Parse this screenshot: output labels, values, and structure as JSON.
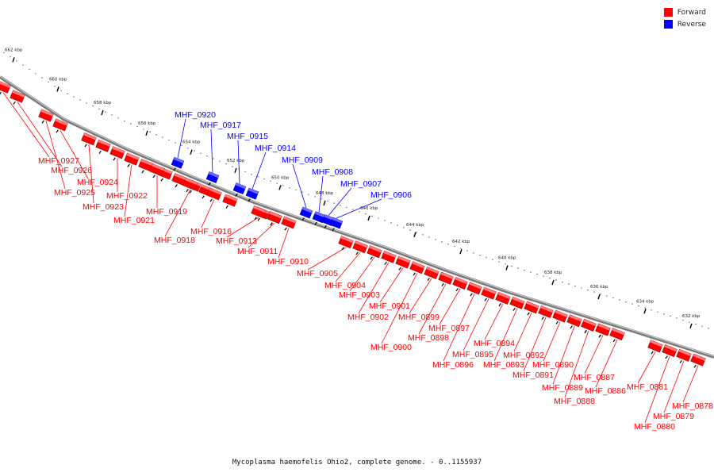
{
  "legend": {
    "forward": {
      "label": "Forward",
      "color": "#ff0000"
    },
    "reverse": {
      "label": "Reverse",
      "color": "#0000ff"
    }
  },
  "caption": "Mycoplasma haemofelis Ohio2, complete genome. - 0..1155937",
  "ruler": {
    "ticks": [
      "662 kbp",
      "660 kbp",
      "658 kbp",
      "656 kbp",
      "654 kbp",
      "652 kbp",
      "650 kbp",
      "648 kbp",
      "646 kbp",
      "644 kbp",
      "642 kbp",
      "640 kbp",
      "638 kbp",
      "636 kbp",
      "634 kbp",
      "632 kbp"
    ]
  },
  "genes": [
    {
      "name": "MHF_0927",
      "strand": "forward"
    },
    {
      "name": "MHF_0926",
      "strand": "forward"
    },
    {
      "name": "MHF_0925",
      "strand": "forward"
    },
    {
      "name": "MHF_0924",
      "strand": "forward"
    },
    {
      "name": "MHF_0923",
      "strand": "forward"
    },
    {
      "name": "MHF_0922",
      "strand": "forward"
    },
    {
      "name": "MHF_0921",
      "strand": "forward"
    },
    {
      "name": "MHF_0920",
      "strand": "reverse"
    },
    {
      "name": "MHF_0919",
      "strand": "forward"
    },
    {
      "name": "MHF_0918",
      "strand": "forward"
    },
    {
      "name": "MHF_0917",
      "strand": "reverse"
    },
    {
      "name": "MHF_0916",
      "strand": "forward"
    },
    {
      "name": "MHF_0915",
      "strand": "reverse"
    },
    {
      "name": "MHF_0914",
      "strand": "reverse"
    },
    {
      "name": "MHF_0913",
      "strand": "forward"
    },
    {
      "name": "MHF_0911",
      "strand": "forward"
    },
    {
      "name": "MHF_0910",
      "strand": "forward"
    },
    {
      "name": "MHF_0909",
      "strand": "reverse"
    },
    {
      "name": "MHF_0908",
      "strand": "reverse"
    },
    {
      "name": "MHF_0907",
      "strand": "reverse"
    },
    {
      "name": "MHF_0906",
      "strand": "reverse"
    },
    {
      "name": "MHF_0905",
      "strand": "forward"
    },
    {
      "name": "MHF_0904",
      "strand": "forward"
    },
    {
      "name": "MHF_0903",
      "strand": "forward"
    },
    {
      "name": "MHF_0902",
      "strand": "forward"
    },
    {
      "name": "MHF_0901",
      "strand": "forward"
    },
    {
      "name": "MHF_0900",
      "strand": "forward"
    },
    {
      "name": "MHF_0899",
      "strand": "forward"
    },
    {
      "name": "MHF_0898",
      "strand": "forward"
    },
    {
      "name": "MHF_0897",
      "strand": "forward"
    },
    {
      "name": "MHF_0896",
      "strand": "forward"
    },
    {
      "name": "MHF_0895",
      "strand": "forward"
    },
    {
      "name": "MHF_0894",
      "strand": "forward"
    },
    {
      "name": "MHF_0893",
      "strand": "forward"
    },
    {
      "name": "MHF_0892",
      "strand": "forward"
    },
    {
      "name": "MHF_0891",
      "strand": "forward"
    },
    {
      "name": "MHF_0890",
      "strand": "forward"
    },
    {
      "name": "MHF_0889",
      "strand": "forward"
    },
    {
      "name": "MHF_0888",
      "strand": "forward"
    },
    {
      "name": "MHF_0887",
      "strand": "forward"
    },
    {
      "name": "MHF_0886",
      "strand": "forward"
    },
    {
      "name": "MHF_0881",
      "strand": "forward"
    },
    {
      "name": "MHF_0880",
      "strand": "forward"
    },
    {
      "name": "MHF_0879",
      "strand": "forward"
    },
    {
      "name": "MHF_0878",
      "strand": "forward"
    }
  ]
}
